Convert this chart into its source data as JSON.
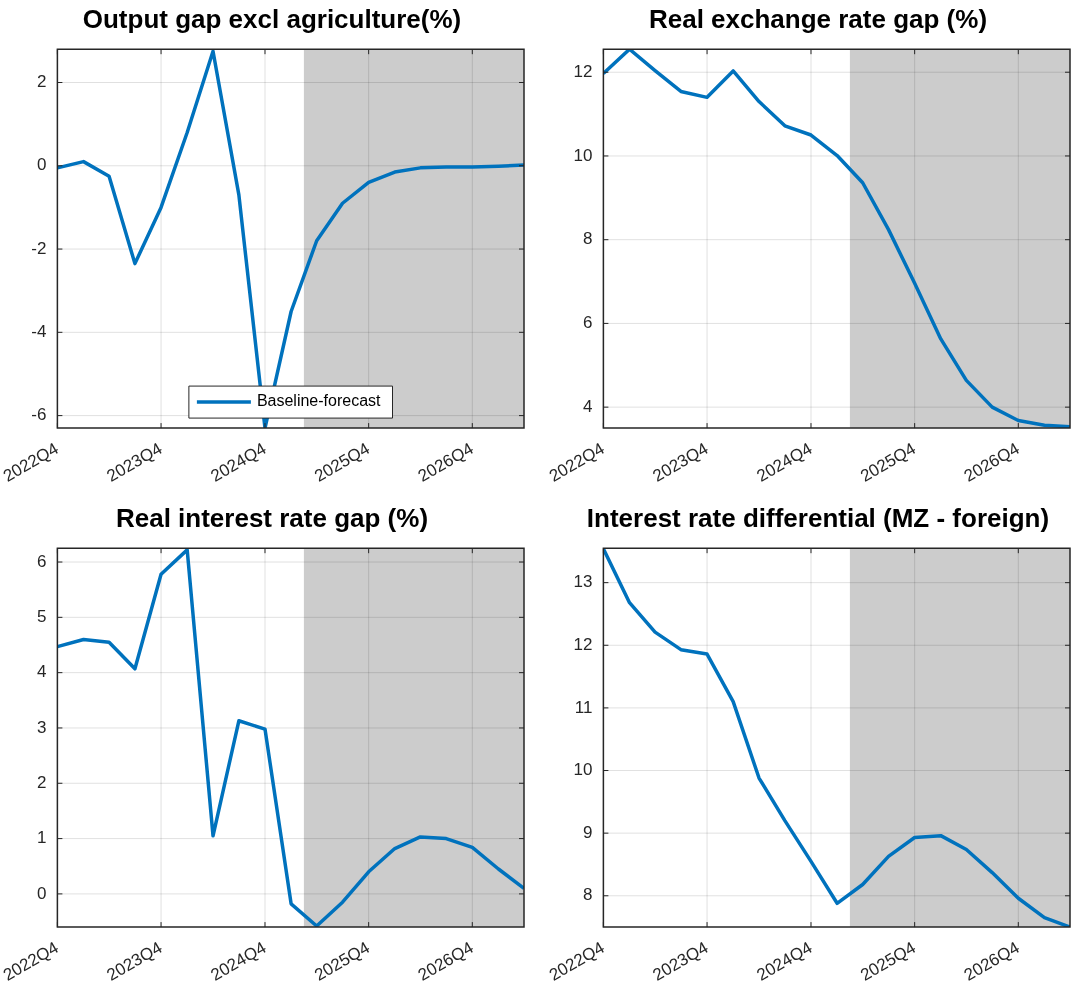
{
  "chart_data": [
    {
      "type": "line",
      "title": "Output gap excl agriculture(%)",
      "x": [
        "2022-10",
        "2023-01",
        "2023-04",
        "2023-07",
        "2023-10",
        "2024-01",
        "2024-04",
        "2024-07",
        "2024-10",
        "2025-01",
        "2025-04",
        "2025-07",
        "2025-10",
        "2026-01",
        "2026-04",
        "2026-07",
        "2026-10",
        "2027-01",
        "2027-04"
      ],
      "series": [
        {
          "name": "Baseline-forecast",
          "color": "#0072bd",
          "values": [
            -0.05,
            0.1,
            -0.25,
            -2.35,
            -1.0,
            0.8,
            2.75,
            -0.7,
            -6.3,
            -3.5,
            -1.8,
            -0.9,
            -0.4,
            -0.15,
            -0.05,
            -0.03,
            -0.03,
            -0.01,
            0.02
          ]
        }
      ],
      "xlim": [
        "2022-10",
        "2027-04"
      ],
      "xticks": [
        {
          "value": "2022-10",
          "label": "2022Q4"
        },
        {
          "value": "2023-10",
          "label": "2023Q4"
        },
        {
          "value": "2024-10",
          "label": "2024Q4"
        },
        {
          "value": "2025-10",
          "label": "2025Q4"
        },
        {
          "value": "2026-10",
          "label": "2026Q4"
        }
      ],
      "ylim": [
        -6.3,
        2.8
      ],
      "yticks": [
        -6,
        -4,
        -2,
        0,
        2
      ],
      "bands": [
        {
          "axis": "x",
          "from": "2025-02-15",
          "to": "2027-04",
          "color": "#cccccc"
        }
      ],
      "grid": true,
      "legend": "bottom"
    },
    {
      "type": "line",
      "title": "Real exchange rate gap (%)",
      "x": [
        "2022-10",
        "2023-01",
        "2023-04",
        "2023-07",
        "2023-10",
        "2024-01",
        "2024-04",
        "2024-07",
        "2024-10",
        "2025-01",
        "2025-04",
        "2025-07",
        "2025-10",
        "2026-01",
        "2026-04",
        "2026-07",
        "2026-10",
        "2027-01",
        "2027-04"
      ],
      "series": [
        {
          "color": "#0072bd",
          "values": [
            11.97,
            12.55,
            12.04,
            11.54,
            11.4,
            12.03,
            11.3,
            10.72,
            10.5,
            10.01,
            9.36,
            8.24,
            6.96,
            5.63,
            4.64,
            4.0,
            3.68,
            3.57,
            3.53
          ]
        }
      ],
      "xlim": [
        "2022-10",
        "2027-04"
      ],
      "xticks": [
        {
          "value": "2022-10",
          "label": "2022Q4"
        },
        {
          "value": "2023-10",
          "label": "2023Q4"
        },
        {
          "value": "2024-10",
          "label": "2024Q4"
        },
        {
          "value": "2025-10",
          "label": "2025Q4"
        },
        {
          "value": "2026-10",
          "label": "2026Q4"
        }
      ],
      "ylim": [
        3.5,
        12.55
      ],
      "yticks": [
        4,
        6,
        8,
        10,
        12
      ],
      "bands": [
        {
          "axis": "x",
          "from": "2025-02-15",
          "to": "2027-04",
          "color": "#cccccc"
        }
      ],
      "grid": true
    },
    {
      "type": "line",
      "title": "Real interest rate gap (%)",
      "x": [
        "2022-10",
        "2023-01",
        "2023-04",
        "2023-07",
        "2023-10",
        "2024-01",
        "2024-04",
        "2024-07",
        "2024-10",
        "2025-01",
        "2025-04",
        "2025-07",
        "2025-10",
        "2026-01",
        "2026-04",
        "2026-07",
        "2026-10",
        "2027-01",
        "2027-04"
      ],
      "series": [
        {
          "color": "#0072bd",
          "values": [
            4.47,
            4.6,
            4.55,
            4.07,
            5.78,
            6.22,
            1.05,
            3.13,
            2.98,
            -0.18,
            -0.58,
            -0.15,
            0.4,
            0.82,
            1.03,
            1.0,
            0.84,
            0.45,
            0.1
          ]
        }
      ],
      "xlim": [
        "2022-10",
        "2027-04"
      ],
      "xticks": [
        {
          "value": "2022-10",
          "label": "2022Q4"
        },
        {
          "value": "2023-10",
          "label": "2023Q4"
        },
        {
          "value": "2024-10",
          "label": "2024Q4"
        },
        {
          "value": "2025-10",
          "label": "2025Q4"
        },
        {
          "value": "2026-10",
          "label": "2026Q4"
        }
      ],
      "ylim": [
        -0.6,
        6.25
      ],
      "yticks": [
        0,
        1,
        2,
        3,
        4,
        5,
        6
      ],
      "bands": [
        {
          "axis": "x",
          "from": "2025-02-15",
          "to": "2027-04",
          "color": "#cccccc"
        }
      ],
      "grid": true
    },
    {
      "type": "line",
      "title": "Interest rate differential (MZ - foreign)",
      "x": [
        "2022-10",
        "2023-01",
        "2023-04",
        "2023-07",
        "2023-10",
        "2024-01",
        "2024-04",
        "2024-07",
        "2024-10",
        "2025-01",
        "2025-04",
        "2025-07",
        "2025-10",
        "2026-01",
        "2026-04",
        "2026-07",
        "2026-10",
        "2027-01",
        "2027-04"
      ],
      "series": [
        {
          "color": "#0072bd",
          "values": [
            13.54,
            12.68,
            12.21,
            11.93,
            11.86,
            11.1,
            9.88,
            9.2,
            8.55,
            7.88,
            8.18,
            8.63,
            8.93,
            8.96,
            8.74,
            8.37,
            7.96,
            7.65,
            7.5
          ]
        }
      ],
      "xlim": [
        "2022-10",
        "2027-04"
      ],
      "xticks": [
        {
          "value": "2022-10",
          "label": "2022Q4"
        },
        {
          "value": "2023-10",
          "label": "2023Q4"
        },
        {
          "value": "2024-10",
          "label": "2024Q4"
        },
        {
          "value": "2025-10",
          "label": "2025Q4"
        },
        {
          "value": "2026-10",
          "label": "2026Q4"
        }
      ],
      "ylim": [
        7.5,
        13.55
      ],
      "yticks": [
        8,
        9,
        10,
        11,
        12,
        13
      ],
      "bands": [
        {
          "axis": "x",
          "from": "2025-02-15",
          "to": "2027-04",
          "color": "#cccccc"
        }
      ],
      "grid": true
    }
  ]
}
